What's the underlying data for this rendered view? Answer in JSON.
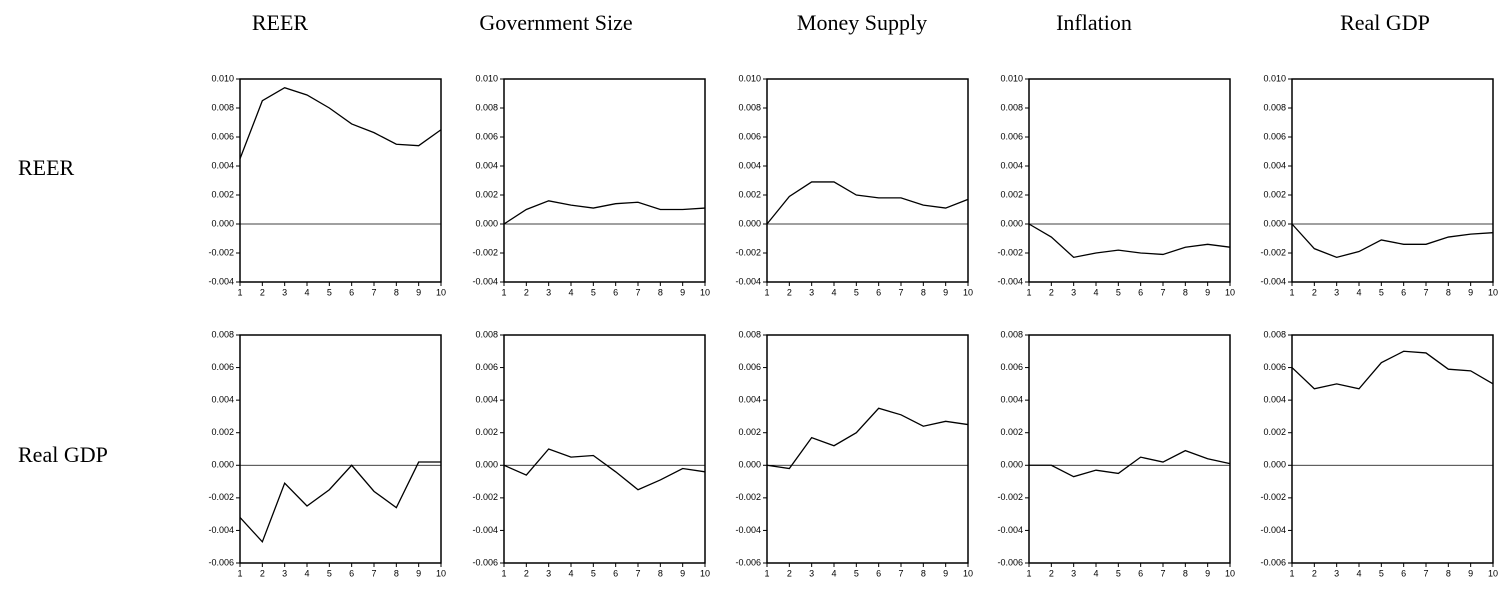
{
  "column_titles": [
    "REER",
    "Government Size",
    "Money Supply",
    "Inflation",
    "Real GDP"
  ],
  "row_labels": [
    "REER",
    "Real GDP"
  ],
  "chart_data": [
    {
      "type": "line",
      "x": [
        1,
        2,
        3,
        4,
        5,
        6,
        7,
        8,
        9,
        10
      ],
      "xlim": [
        1,
        10
      ],
      "xticks": [
        1,
        2,
        3,
        4,
        5,
        6,
        7,
        8,
        9,
        10
      ],
      "ylim": [
        -0.004,
        0.01
      ],
      "yticks": [
        {
          "value": -0.004,
          "label": "-0.004"
        },
        {
          "value": -0.002,
          "label": "-0.002"
        },
        {
          "value": 0,
          "label": "0.000"
        },
        {
          "value": 0.002,
          "label": "0.002"
        },
        {
          "value": 0.004,
          "label": "0.004"
        },
        {
          "value": 0.006,
          "label": "0.006"
        },
        {
          "value": 0.008,
          "label": "0.008"
        },
        {
          "value": 0.01,
          "label": "0.010"
        }
      ],
      "color": "#000000",
      "values": [
        0.0045,
        0.0085,
        0.0094,
        0.0089,
        0.008,
        0.0069,
        0.0063,
        0.0055,
        0.0054,
        0.0065
      ]
    },
    {
      "type": "line",
      "x": [
        1,
        2,
        3,
        4,
        5,
        6,
        7,
        8,
        9,
        10
      ],
      "xlim": [
        1,
        10
      ],
      "xticks": [
        1,
        2,
        3,
        4,
        5,
        6,
        7,
        8,
        9,
        10
      ],
      "ylim": [
        -0.004,
        0.01
      ],
      "yticks": [
        {
          "value": -0.004,
          "label": "-0.004"
        },
        {
          "value": -0.002,
          "label": "-0.002"
        },
        {
          "value": 0,
          "label": "0.000"
        },
        {
          "value": 0.002,
          "label": "0.002"
        },
        {
          "value": 0.004,
          "label": "0.004"
        },
        {
          "value": 0.006,
          "label": "0.006"
        },
        {
          "value": 0.008,
          "label": "0.008"
        },
        {
          "value": 0.01,
          "label": "0.010"
        }
      ],
      "color": "#000000",
      "values": [
        0,
        0.001,
        0.0016,
        0.0013,
        0.0011,
        0.0014,
        0.0015,
        0.001,
        0.001,
        0.0011
      ]
    },
    {
      "type": "line",
      "x": [
        1,
        2,
        3,
        4,
        5,
        6,
        7,
        8,
        9,
        10
      ],
      "xlim": [
        1,
        10
      ],
      "xticks": [
        1,
        2,
        3,
        4,
        5,
        6,
        7,
        8,
        9,
        10
      ],
      "ylim": [
        -0.004,
        0.01
      ],
      "yticks": [
        {
          "value": -0.004,
          "label": "-0.004"
        },
        {
          "value": -0.002,
          "label": "-0.002"
        },
        {
          "value": 0,
          "label": "0.000"
        },
        {
          "value": 0.002,
          "label": "0.002"
        },
        {
          "value": 0.004,
          "label": "0.004"
        },
        {
          "value": 0.006,
          "label": "0.006"
        },
        {
          "value": 0.008,
          "label": "0.008"
        },
        {
          "value": 0.01,
          "label": "0.010"
        }
      ],
      "color": "#000000",
      "values": [
        0,
        0.0019,
        0.0029,
        0.0029,
        0.002,
        0.0018,
        0.0018,
        0.0013,
        0.0011,
        0.0017
      ]
    },
    {
      "type": "line",
      "x": [
        1,
        2,
        3,
        4,
        5,
        6,
        7,
        8,
        9,
        10
      ],
      "xlim": [
        1,
        10
      ],
      "xticks": [
        1,
        2,
        3,
        4,
        5,
        6,
        7,
        8,
        9,
        10
      ],
      "ylim": [
        -0.004,
        0.01
      ],
      "yticks": [
        {
          "value": -0.004,
          "label": "-0.004"
        },
        {
          "value": -0.002,
          "label": "-0.002"
        },
        {
          "value": 0,
          "label": "0.000"
        },
        {
          "value": 0.002,
          "label": "0.002"
        },
        {
          "value": 0.004,
          "label": "0.004"
        },
        {
          "value": 0.006,
          "label": "0.006"
        },
        {
          "value": 0.008,
          "label": "0.008"
        },
        {
          "value": 0.01,
          "label": "0.010"
        }
      ],
      "color": "#000000",
      "values": [
        0,
        -0.0009,
        -0.0023,
        -0.002,
        -0.0018,
        -0.002,
        -0.0021,
        -0.0016,
        -0.0014,
        -0.0016
      ]
    },
    {
      "type": "line",
      "x": [
        1,
        2,
        3,
        4,
        5,
        6,
        7,
        8,
        9,
        10
      ],
      "xlim": [
        1,
        10
      ],
      "xticks": [
        1,
        2,
        3,
        4,
        5,
        6,
        7,
        8,
        9,
        10
      ],
      "ylim": [
        -0.004,
        0.01
      ],
      "yticks": [
        {
          "value": -0.004,
          "label": "-0.004"
        },
        {
          "value": -0.002,
          "label": "-0.002"
        },
        {
          "value": 0,
          "label": "0.000"
        },
        {
          "value": 0.002,
          "label": "0.002"
        },
        {
          "value": 0.004,
          "label": "0.004"
        },
        {
          "value": 0.006,
          "label": "0.006"
        },
        {
          "value": 0.008,
          "label": "0.008"
        },
        {
          "value": 0.01,
          "label": "0.010"
        }
      ],
      "color": "#000000",
      "values": [
        0,
        -0.0017,
        -0.0023,
        -0.0019,
        -0.0011,
        -0.0014,
        -0.0014,
        -0.0009,
        -0.0007,
        -0.0006
      ]
    },
    {
      "type": "line",
      "x": [
        1,
        2,
        3,
        4,
        5,
        6,
        7,
        8,
        9,
        10
      ],
      "xlim": [
        1,
        10
      ],
      "xticks": [
        1,
        2,
        3,
        4,
        5,
        6,
        7,
        8,
        9,
        10
      ],
      "ylim": [
        -0.006,
        0.008
      ],
      "yticks": [
        {
          "value": -0.006,
          "label": "-0.006"
        },
        {
          "value": -0.004,
          "label": "-0.004"
        },
        {
          "value": -0.002,
          "label": "-0.002"
        },
        {
          "value": 0,
          "label": "0.000"
        },
        {
          "value": 0.002,
          "label": "0.002"
        },
        {
          "value": 0.004,
          "label": "0.004"
        },
        {
          "value": 0.006,
          "label": "0.006"
        },
        {
          "value": 0.008,
          "label": "0.008"
        }
      ],
      "color": "#000000",
      "values": [
        -0.0032,
        -0.0047,
        -0.0011,
        -0.0025,
        -0.0015,
        0,
        -0.0016,
        -0.0026,
        0.0002,
        0.0002
      ]
    },
    {
      "type": "line",
      "x": [
        1,
        2,
        3,
        4,
        5,
        6,
        7,
        8,
        9,
        10
      ],
      "xlim": [
        1,
        10
      ],
      "xticks": [
        1,
        2,
        3,
        4,
        5,
        6,
        7,
        8,
        9,
        10
      ],
      "ylim": [
        -0.006,
        0.008
      ],
      "yticks": [
        {
          "value": -0.006,
          "label": "-0.006"
        },
        {
          "value": -0.004,
          "label": "-0.004"
        },
        {
          "value": -0.002,
          "label": "-0.002"
        },
        {
          "value": 0,
          "label": "0.000"
        },
        {
          "value": 0.002,
          "label": "0.002"
        },
        {
          "value": 0.004,
          "label": "0.004"
        },
        {
          "value": 0.006,
          "label": "0.006"
        },
        {
          "value": 0.008,
          "label": "0.008"
        }
      ],
      "color": "#000000",
      "values": [
        0,
        -0.0006,
        0.001,
        0.0005,
        0.0006,
        -0.0004,
        -0.0015,
        -0.0009,
        -0.0002,
        -0.0004
      ]
    },
    {
      "type": "line",
      "x": [
        1,
        2,
        3,
        4,
        5,
        6,
        7,
        8,
        9,
        10
      ],
      "xlim": [
        1,
        10
      ],
      "xticks": [
        1,
        2,
        3,
        4,
        5,
        6,
        7,
        8,
        9,
        10
      ],
      "ylim": [
        -0.006,
        0.008
      ],
      "yticks": [
        {
          "value": -0.006,
          "label": "-0.006"
        },
        {
          "value": -0.004,
          "label": "-0.004"
        },
        {
          "value": -0.002,
          "label": "-0.002"
        },
        {
          "value": 0,
          "label": "0.000"
        },
        {
          "value": 0.002,
          "label": "0.002"
        },
        {
          "value": 0.004,
          "label": "0.004"
        },
        {
          "value": 0.006,
          "label": "0.006"
        },
        {
          "value": 0.008,
          "label": "0.008"
        }
      ],
      "color": "#000000",
      "values": [
        0,
        -0.0002,
        0.0017,
        0.0012,
        0.002,
        0.0035,
        0.0031,
        0.0024,
        0.0027,
        0.0025
      ]
    },
    {
      "type": "line",
      "x": [
        1,
        2,
        3,
        4,
        5,
        6,
        7,
        8,
        9,
        10
      ],
      "xlim": [
        1,
        10
      ],
      "xticks": [
        1,
        2,
        3,
        4,
        5,
        6,
        7,
        8,
        9,
        10
      ],
      "ylim": [
        -0.006,
        0.008
      ],
      "yticks": [
        {
          "value": -0.006,
          "label": "-0.006"
        },
        {
          "value": -0.004,
          "label": "-0.004"
        },
        {
          "value": -0.002,
          "label": "-0.002"
        },
        {
          "value": 0,
          "label": "0.000"
        },
        {
          "value": 0.002,
          "label": "0.002"
        },
        {
          "value": 0.004,
          "label": "0.004"
        },
        {
          "value": 0.006,
          "label": "0.006"
        },
        {
          "value": 0.008,
          "label": "0.008"
        }
      ],
      "color": "#000000",
      "values": [
        0,
        0,
        -0.0007,
        -0.0003,
        -0.0005,
        0.0005,
        0.0002,
        0.0009,
        0.0004,
        0.0001
      ]
    },
    {
      "type": "line",
      "x": [
        1,
        2,
        3,
        4,
        5,
        6,
        7,
        8,
        9,
        10
      ],
      "xlim": [
        1,
        10
      ],
      "xticks": [
        1,
        2,
        3,
        4,
        5,
        6,
        7,
        8,
        9,
        10
      ],
      "ylim": [
        -0.006,
        0.008
      ],
      "yticks": [
        {
          "value": -0.006,
          "label": "-0.006"
        },
        {
          "value": -0.004,
          "label": "-0.004"
        },
        {
          "value": -0.002,
          "label": "-0.002"
        },
        {
          "value": 0,
          "label": "0.000"
        },
        {
          "value": 0.002,
          "label": "0.002"
        },
        {
          "value": 0.004,
          "label": "0.004"
        },
        {
          "value": 0.006,
          "label": "0.006"
        },
        {
          "value": 0.008,
          "label": "0.008"
        }
      ],
      "color": "#000000",
      "values": [
        0.006,
        0.0047,
        0.005,
        0.0047,
        0.0063,
        0.007,
        0.0069,
        0.0059,
        0.0058,
        0.005
      ]
    }
  ]
}
